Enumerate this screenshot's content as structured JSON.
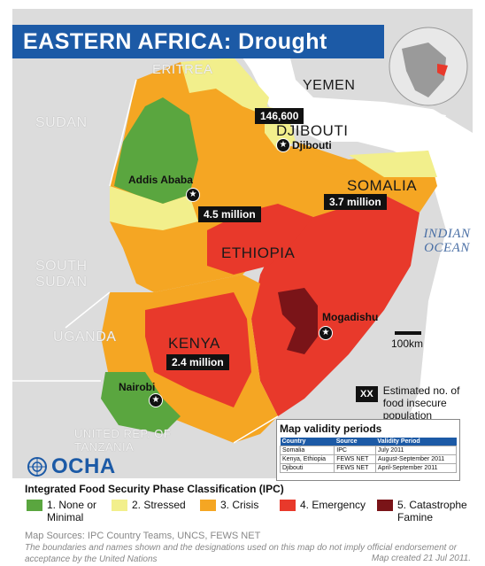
{
  "title": "EASTERN AFRICA: Drought",
  "colors": {
    "none_minimal": "#5aa63f",
    "stressed": "#f2ef8c",
    "crisis": "#f5a623",
    "emergency": "#e8392b",
    "famine": "#7a1418",
    "title_bar": "#1c5aa6",
    "water": "#ffffff",
    "other_land": "#dcdcdc"
  },
  "map_labels": {
    "eritrea": "ERITREA",
    "yemen": "YEMEN",
    "sudan": "SUDAN",
    "djibouti": "DJIBOUTI",
    "somalia": "SOMALIA",
    "ethiopia": "ETHIOPIA",
    "south_sudan": "SOUTH SUDAN",
    "uganda": "UGANDA",
    "kenya": "KENYA",
    "tanzania": "UNITED REP. OF TANZANIA",
    "indian_ocean": "INDIAN OCEAN"
  },
  "cities": {
    "addis_ababa": "Addis Ababa",
    "djibouti": "Djibouti",
    "mogadishu": "Mogadishu",
    "nairobi": "Nairobi"
  },
  "populations": {
    "djibouti": "146,600",
    "ethiopia": "4.5 million",
    "somalia": "3.7 million",
    "kenya": "2.4 million"
  },
  "scale": "100km",
  "legend_key": {
    "symbol": "XX",
    "text": "Estimated no. of food insecure population"
  },
  "validity": {
    "title": "Map validity periods",
    "headers": [
      "Country",
      "Source",
      "Validity Period"
    ],
    "rows": [
      [
        "Somalia",
        "IPC",
        "July 2011"
      ],
      [
        "Kenya, Ethiopia",
        "FEWS NET",
        "August-September 2011"
      ],
      [
        "Djibouti",
        "FEWS NET",
        "April-September 2011"
      ]
    ]
  },
  "ocha": "OCHA",
  "ipc": {
    "title": "Integrated Food Security Phase Classification (IPC)",
    "items": [
      {
        "label": "1. None or Minimal",
        "color": "#5aa63f"
      },
      {
        "label": "2. Stressed",
        "color": "#f2ef8c"
      },
      {
        "label": "3. Crisis",
        "color": "#f5a623"
      },
      {
        "label": "4. Emergency",
        "color": "#e8392b"
      },
      {
        "label": "5. Catastrophe Famine",
        "color": "#7a1418"
      }
    ]
  },
  "sources": "Map Sources: IPC Country Teams, UNCS, FEWS NET",
  "disclaimer": "The boundaries and names shown and the designations used on this map do not imply official endorsement  or acceptance by the United Nations",
  "created": "Map created 21 Jul 2011."
}
